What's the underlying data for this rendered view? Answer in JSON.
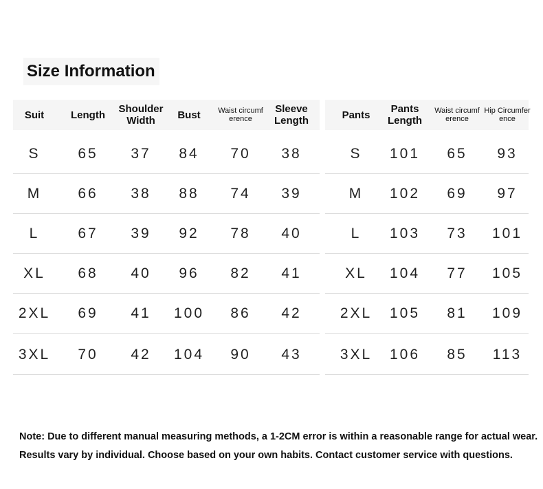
{
  "title": "Size Information",
  "suit_table": {
    "headers": [
      "Suit",
      "Length",
      "Shoulder Width",
      "Bust",
      "Waist circumference",
      "Sleeve Length"
    ],
    "rows": [
      [
        "S",
        "65",
        "37",
        "84",
        "70",
        "38"
      ],
      [
        "M",
        "66",
        "38",
        "88",
        "74",
        "39"
      ],
      [
        "L",
        "67",
        "39",
        "92",
        "78",
        "40"
      ],
      [
        "XL",
        "68",
        "40",
        "96",
        "82",
        "41"
      ],
      [
        "2XL",
        "69",
        "41",
        "100",
        "86",
        "42"
      ],
      [
        "3XL",
        "70",
        "42",
        "104",
        "90",
        "43"
      ]
    ]
  },
  "pants_table": {
    "headers": [
      "Pants",
      "Pants Length",
      "Waist circumference",
      "Hip Circumference"
    ],
    "rows": [
      [
        "S",
        "101",
        "65",
        "93"
      ],
      [
        "M",
        "102",
        "69",
        "97"
      ],
      [
        "L",
        "103",
        "73",
        "101"
      ],
      [
        "XL",
        "104",
        "77",
        "105"
      ],
      [
        "2XL",
        "105",
        "81",
        "109"
      ],
      [
        "3XL",
        "106",
        "85",
        "113"
      ]
    ]
  },
  "notes": [
    "Note: Due to different manual measuring methods, a 1-2CM error is within a reasonable range for actual wear.",
    "Results vary by individual. Choose based on your own habits. Contact customer service with questions."
  ]
}
